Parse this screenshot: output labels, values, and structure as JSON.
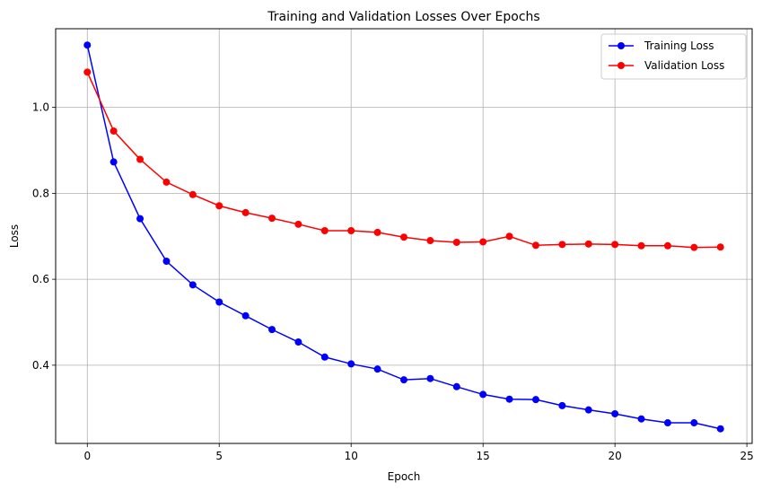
{
  "chart_data": {
    "type": "line",
    "title": "Training and Validation Losses Over Epochs",
    "xlabel": "Epoch",
    "ylabel": "Loss",
    "xlim": [
      -1.2,
      25.2
    ],
    "ylim": [
      0.218,
      1.183
    ],
    "xticks": [
      0,
      5,
      10,
      15,
      20,
      25
    ],
    "yticks": [
      0.4,
      0.6,
      0.8,
      1.0
    ],
    "xtick_labels": [
      "0",
      "5",
      "10",
      "15",
      "20",
      "25"
    ],
    "ytick_labels": [
      "0.4",
      "0.6",
      "0.8",
      "1.0"
    ],
    "grid": true,
    "legend_position": "top-right",
    "x": [
      0,
      1,
      2,
      3,
      4,
      5,
      6,
      7,
      8,
      9,
      10,
      11,
      12,
      13,
      14,
      15,
      16,
      17,
      18,
      19,
      20,
      21,
      22,
      23,
      24
    ],
    "series": [
      {
        "name": "Training Loss",
        "color": "#0000ff",
        "marker": "circle",
        "values": [
          1.145,
          0.873,
          0.741,
          0.642,
          0.587,
          0.547,
          0.515,
          0.483,
          0.454,
          0.419,
          0.403,
          0.391,
          0.366,
          0.369,
          0.35,
          0.332,
          0.321,
          0.32,
          0.306,
          0.296,
          0.287,
          0.275,
          0.266,
          0.266,
          0.252
        ]
      },
      {
        "name": "Validation Loss",
        "color": "#ff0000",
        "marker": "circle",
        "values": [
          1.082,
          0.945,
          0.879,
          0.826,
          0.797,
          0.771,
          0.755,
          0.742,
          0.728,
          0.713,
          0.713,
          0.709,
          0.698,
          0.69,
          0.686,
          0.687,
          0.7,
          0.679,
          0.681,
          0.682,
          0.681,
          0.678,
          0.678,
          0.674,
          0.675
        ]
      }
    ]
  }
}
